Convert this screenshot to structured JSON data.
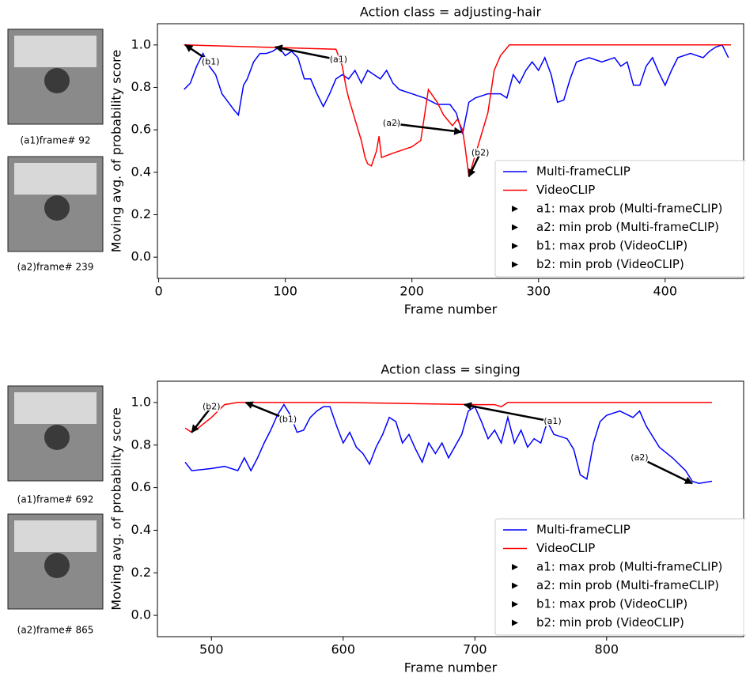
{
  "chart_data": [
    {
      "type": "line",
      "title": "Action class = adjusting-hair",
      "xlabel": "Frame number",
      "ylabel": "Moving avg. of probability score",
      "xlim": [
        -1,
        462
      ],
      "ylim": [
        -0.1,
        1.1
      ],
      "xticks": [
        0,
        100,
        200,
        300,
        400
      ],
      "yticks": [
        {
          "value": 0,
          "label": "0.0"
        },
        0.2,
        0.4,
        0.6,
        0.8,
        {
          "value": 1,
          "label": "1.0"
        }
      ],
      "legend": "lower right",
      "legend_notes": [
        "a1: max prob (Multi-frameCLIP)",
        "a2: min prob (Multi-frameCLIP)",
        "b1: max prob (VideoCLIP)",
        "b2: min prob (VideoCLIP)"
      ],
      "frames": [
        "(a1)frame# 92",
        "(a2)frame# 239"
      ],
      "series": [
        {
          "name": "Multi-frameCLIP",
          "color": "#0000ff",
          "x": [
            20,
            25,
            30,
            35,
            40,
            45,
            50,
            55,
            60,
            63,
            67,
            70,
            75,
            80,
            85,
            90,
            95,
            100,
            105,
            110,
            115,
            120,
            125,
            130,
            135,
            140,
            145,
            150,
            155,
            160,
            165,
            170,
            175,
            180,
            185,
            190,
            200,
            210,
            220,
            230,
            235,
            240,
            245,
            250,
            260,
            270,
            275,
            280,
            285,
            290,
            295,
            300,
            305,
            310,
            315,
            320,
            325,
            330,
            340,
            350,
            360,
            365,
            370,
            375,
            380,
            385,
            390,
            395,
            400,
            405,
            410,
            420,
            430,
            435,
            440,
            445,
            450
          ],
          "values": [
            0.79,
            0.82,
            0.9,
            0.96,
            0.9,
            0.86,
            0.77,
            0.73,
            0.69,
            0.67,
            0.81,
            0.84,
            0.92,
            0.96,
            0.96,
            0.97,
            0.99,
            0.95,
            0.97,
            0.94,
            0.84,
            0.84,
            0.77,
            0.71,
            0.77,
            0.84,
            0.86,
            0.84,
            0.88,
            0.82,
            0.88,
            0.86,
            0.84,
            0.88,
            0.82,
            0.79,
            0.77,
            0.75,
            0.72,
            0.72,
            0.68,
            0.58,
            0.73,
            0.75,
            0.77,
            0.77,
            0.75,
            0.86,
            0.82,
            0.88,
            0.92,
            0.88,
            0.94,
            0.86,
            0.73,
            0.74,
            0.84,
            0.92,
            0.94,
            0.92,
            0.94,
            0.9,
            0.92,
            0.81,
            0.81,
            0.9,
            0.94,
            0.87,
            0.81,
            0.88,
            0.94,
            0.96,
            0.94,
            0.97,
            0.99,
            1.0,
            0.94
          ]
        },
        {
          "name": "VideoCLIP",
          "color": "#ff0000",
          "x": [
            20,
            140,
            145,
            148,
            150,
            155,
            160,
            163,
            165,
            168,
            172,
            174,
            176,
            185,
            200,
            207,
            213,
            220,
            225,
            232,
            236,
            240,
            242,
            245,
            250,
            255,
            260,
            265,
            270,
            277,
            452
          ],
          "values": [
            1.0,
            0.98,
            0.9,
            0.8,
            0.75,
            0.65,
            0.55,
            0.47,
            0.44,
            0.43,
            0.5,
            0.57,
            0.47,
            0.49,
            0.52,
            0.55,
            0.79,
            0.73,
            0.67,
            0.62,
            0.65,
            0.6,
            0.52,
            0.38,
            0.48,
            0.58,
            0.68,
            0.88,
            0.95,
            1.0,
            1.0
          ]
        }
      ],
      "annotations": [
        {
          "text": "(b1)",
          "xy": [
            21,
            1.0
          ],
          "xytext": [
            41,
            0.92
          ]
        },
        {
          "text": "(a1)",
          "xy": [
            92,
            0.99
          ],
          "xytext": [
            142,
            0.93
          ]
        },
        {
          "text": "(a2)",
          "xy": [
            239,
            0.59
          ],
          "xytext": [
            184,
            0.63
          ]
        },
        {
          "text": "(b2)",
          "xy": [
            245,
            0.38
          ],
          "xytext": [
            254,
            0.49
          ]
        }
      ]
    },
    {
      "type": "line",
      "title": "Action class = singing",
      "xlabel": "Frame number",
      "ylabel": "Moving avg. of probability score",
      "xlim": [
        459,
        904
      ],
      "ylim": [
        -0.1,
        1.1
      ],
      "xticks": [
        500,
        600,
        700,
        800
      ],
      "yticks": [
        {
          "value": 0,
          "label": "0.0"
        },
        0.2,
        0.4,
        0.6,
        0.8,
        {
          "value": 1,
          "label": "1.0"
        }
      ],
      "legend": "lower right",
      "legend_notes": [
        "a1: max prob (Multi-frameCLIP)",
        "a2: min prob (Multi-frameCLIP)",
        "b1: max prob (VideoCLIP)",
        "b2: min prob (VideoCLIP)"
      ],
      "frames": [
        "(a1)frame# 692",
        "(a2)frame# 865"
      ],
      "series": [
        {
          "name": "Multi-frameCLIP",
          "color": "#0000ff",
          "x": [
            480,
            485,
            500,
            510,
            520,
            525,
            530,
            535,
            540,
            545,
            550,
            555,
            560,
            565,
            570,
            575,
            580,
            585,
            590,
            595,
            600,
            605,
            610,
            615,
            620,
            625,
            630,
            635,
            640,
            645,
            650,
            655,
            660,
            665,
            670,
            675,
            680,
            690,
            695,
            700,
            705,
            710,
            715,
            720,
            725,
            730,
            735,
            740,
            745,
            750,
            755,
            760,
            770,
            775,
            780,
            785,
            790,
            795,
            800,
            810,
            820,
            825,
            830,
            840,
            850,
            860,
            865,
            870,
            880
          ],
          "values": [
            0.72,
            0.68,
            0.69,
            0.7,
            0.68,
            0.74,
            0.68,
            0.74,
            0.81,
            0.87,
            0.94,
            0.99,
            0.94,
            0.86,
            0.87,
            0.93,
            0.96,
            0.98,
            0.98,
            0.89,
            0.81,
            0.86,
            0.79,
            0.76,
            0.71,
            0.79,
            0.85,
            0.93,
            0.91,
            0.81,
            0.85,
            0.78,
            0.72,
            0.81,
            0.76,
            0.81,
            0.74,
            0.85,
            0.96,
            0.98,
            0.91,
            0.83,
            0.87,
            0.81,
            0.93,
            0.81,
            0.87,
            0.79,
            0.83,
            0.81,
            0.91,
            0.85,
            0.83,
            0.78,
            0.66,
            0.64,
            0.81,
            0.91,
            0.94,
            0.96,
            0.93,
            0.96,
            0.89,
            0.79,
            0.74,
            0.68,
            0.63,
            0.62,
            0.63
          ]
        },
        {
          "name": "VideoCLIP",
          "color": "#ff0000",
          "x": [
            480,
            485,
            490,
            500,
            510,
            520,
            600,
            700,
            715,
            720,
            725,
            880
          ],
          "values": [
            0.88,
            0.86,
            0.88,
            0.93,
            0.99,
            1.0,
            1.0,
            0.99,
            0.99,
            0.98,
            1.0,
            1.0
          ]
        }
      ],
      "annotations": [
        {
          "text": "(b2)",
          "xy": [
            485,
            0.86
          ],
          "xytext": [
            500,
            0.98
          ]
        },
        {
          "text": "(b1)",
          "xy": [
            526,
            1.0
          ],
          "xytext": [
            558,
            0.92
          ]
        },
        {
          "text": "(a1)",
          "xy": [
            692,
            0.99
          ],
          "xytext": [
            759,
            0.91
          ]
        },
        {
          "text": "(a2)",
          "xy": [
            865,
            0.62
          ],
          "xytext": [
            825,
            0.74
          ]
        }
      ]
    }
  ]
}
